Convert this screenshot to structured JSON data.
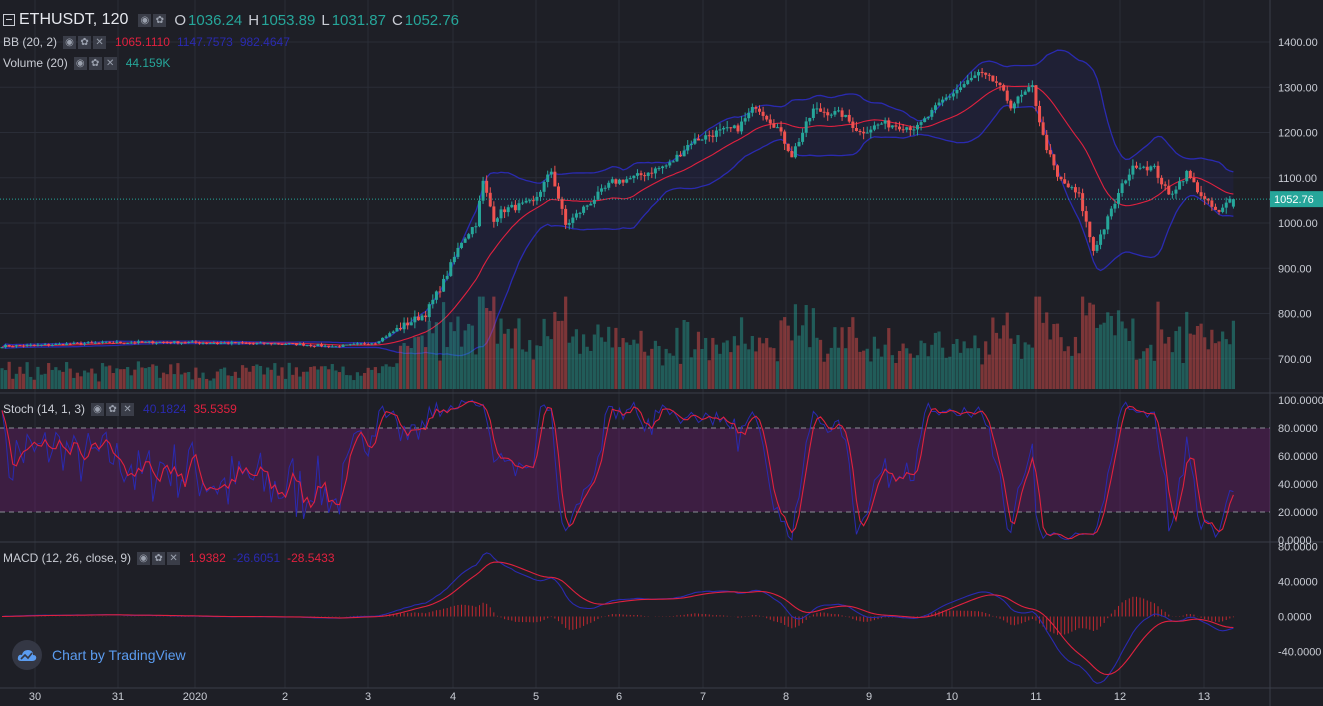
{
  "header": {
    "symbol": "ETHUSDT, 120",
    "open_key": "O",
    "open": "1036.24",
    "high_key": "H",
    "high": "1053.89",
    "low_key": "L",
    "low": "1031.87",
    "close_key": "C",
    "close": "1052.76"
  },
  "indicators": {
    "bb": {
      "label": "BB (20, 2)",
      "basis": "1065.1110",
      "upper": "1147.7573",
      "lower": "982.4647"
    },
    "volume": {
      "label": "Volume (20)",
      "value": "44.159K"
    },
    "stoch": {
      "label": "Stoch (14, 1, 3)",
      "k": "40.1824",
      "d": "35.5359"
    },
    "macd": {
      "label": "MACD (12, 26, close, 9)",
      "hist": "1.9382",
      "macd": "-26.6051",
      "signal": "-28.5433"
    }
  },
  "controls": {
    "eye": "◉",
    "gear": "✿",
    "close": "✕"
  },
  "branding": {
    "logo_text": "Chart by TradingView",
    "logo_icon": "tradingview-cloud-icon"
  },
  "colors": {
    "up": "#26a69a",
    "down": "#ef5350",
    "bb_basis": "#e0213f",
    "bb_band": "#2a2ab0",
    "stoch_k": "#2a2ab0",
    "stoch_d": "#e0213f",
    "macd_line": "#2a2ab0",
    "signal_line": "#e0213f",
    "bg": "#1e1f26",
    "price_line": "#26a69a"
  },
  "chart_data": {
    "type": "candlestick",
    "price_axis": {
      "ticks": [
        "1400.00",
        "1300.00",
        "1200.00",
        "1100.00",
        "1000.00",
        "900.00",
        "800.00",
        "700.00"
      ],
      "ylim": [
        630,
        1455
      ]
    },
    "last_price_label": "1052.76",
    "x_ticks": [
      "30",
      "31",
      "2020",
      "2",
      "3",
      "4",
      "5",
      "6",
      "7",
      "8",
      "9",
      "10",
      "11",
      "12",
      "13"
    ],
    "anchors": [
      [
        0,
        728
      ],
      [
        10,
        730
      ],
      [
        30,
        736
      ],
      [
        35,
        736
      ],
      [
        45,
        737
      ],
      [
        60,
        735
      ],
      [
        70,
        734
      ],
      [
        80,
        733
      ],
      [
        93,
        727
      ],
      [
        104,
        736
      ],
      [
        110,
        765
      ],
      [
        118,
        800
      ],
      [
        123,
        870
      ],
      [
        128,
        960
      ],
      [
        132,
        1000
      ],
      [
        134,
        1090
      ],
      [
        137,
        1010
      ],
      [
        140,
        1030
      ],
      [
        148,
        1045
      ],
      [
        153,
        1115
      ],
      [
        157,
        995
      ],
      [
        163,
        1040
      ],
      [
        170,
        1090
      ],
      [
        176,
        1100
      ],
      [
        186,
        1130
      ],
      [
        192,
        1180
      ],
      [
        199,
        1200
      ],
      [
        205,
        1210
      ],
      [
        210,
        1260
      ],
      [
        216,
        1210
      ],
      [
        220,
        1150
      ],
      [
        226,
        1250
      ],
      [
        234,
        1240
      ],
      [
        239,
        1200
      ],
      [
        245,
        1220
      ],
      [
        255,
        1210
      ],
      [
        262,
        1270
      ],
      [
        267,
        1300
      ],
      [
        272,
        1330
      ],
      [
        277,
        1310
      ],
      [
        281,
        1260
      ],
      [
        287,
        1300
      ],
      [
        290,
        1190
      ],
      [
        294,
        1100
      ],
      [
        300,
        1060
      ],
      [
        304,
        940
      ],
      [
        307,
        990
      ],
      [
        313,
        1100
      ],
      [
        316,
        1130
      ],
      [
        321,
        1120
      ],
      [
        325,
        1060
      ],
      [
        330,
        1110
      ],
      [
        335,
        1050
      ],
      [
        339,
        1020
      ],
      [
        342,
        1052
      ]
    ],
    "volume_axis": {
      "ylim": [
        0,
        230
      ]
    },
    "stoch_axis": {
      "ticks": [
        "100.0000",
        "80.0000",
        "60.0000",
        "40.0000",
        "20.0000",
        "0.0000"
      ],
      "ylim": [
        0,
        100
      ],
      "bands": [
        20,
        80
      ]
    },
    "macd_axis": {
      "ticks": [
        "80.0000",
        "40.0000",
        "0.0000",
        "-40.0000"
      ],
      "ylim": [
        -82,
        82
      ]
    }
  }
}
